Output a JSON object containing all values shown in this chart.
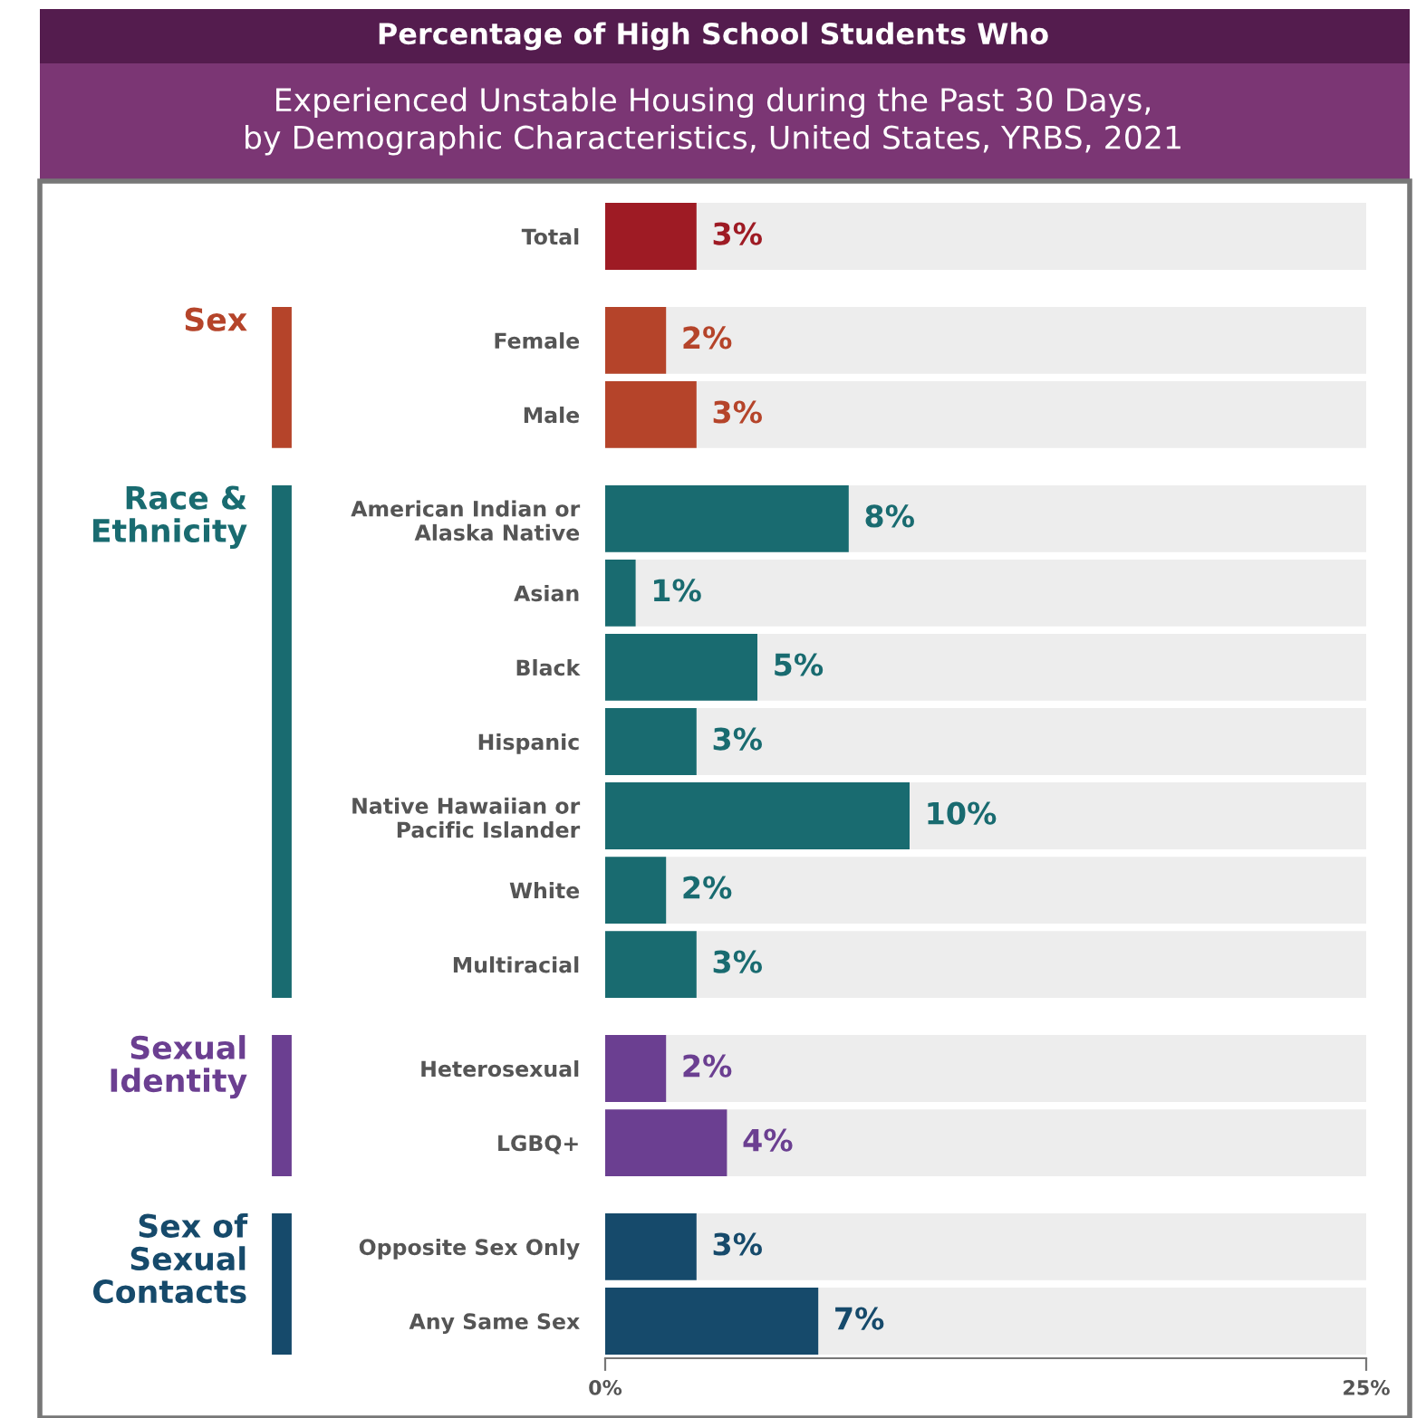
{
  "chart_data": {
    "type": "bar",
    "orientation": "horizontal",
    "title": "Percentage of High School Students Who",
    "subtitle": "Experienced Unstable Housing during the Past 30 Days,\nby Demographic Characteristics, United States, YRBS, 2021",
    "categories": [
      "Total",
      "Female",
      "Male",
      "American Indian or\nAlaska Native",
      "Asian",
      "Black",
      "Hispanic",
      "Native Hawaiian or\nPacific Islander",
      "White",
      "Multiracial",
      "Heterosexual",
      "LGBQ+",
      "Opposite Sex Only",
      "Any Same Sex"
    ],
    "values": [
      3,
      2,
      3,
      8,
      1,
      5,
      3,
      10,
      2,
      3,
      2,
      4,
      3,
      7
    ],
    "value_labels": [
      "3%",
      "2%",
      "3%",
      "8%",
      "1%",
      "5%",
      "3%",
      "10%",
      "2%",
      "3%",
      "2%",
      "4%",
      "3%",
      "7%"
    ],
    "colors": [
      "#9e1b24",
      "#b5442a",
      "#b5442a",
      "#196b70",
      "#196b70",
      "#196b70",
      "#196b70",
      "#196b70",
      "#196b70",
      "#196b70",
      "#6b3f91",
      "#6b3f91",
      "#164a6b",
      "#164a6b"
    ],
    "annotations": [
      "Sex",
      "Race &\nEthnicity",
      "Sexual\nIdentity",
      "Sex of\nSexual\nContacts"
    ],
    "xlim": [
      0,
      25
    ],
    "xticks": [
      {
        "value": 0,
        "label": "0%"
      },
      {
        "value": 25,
        "label": "25%"
      }
    ],
    "grid": false,
    "legend": false
  }
}
